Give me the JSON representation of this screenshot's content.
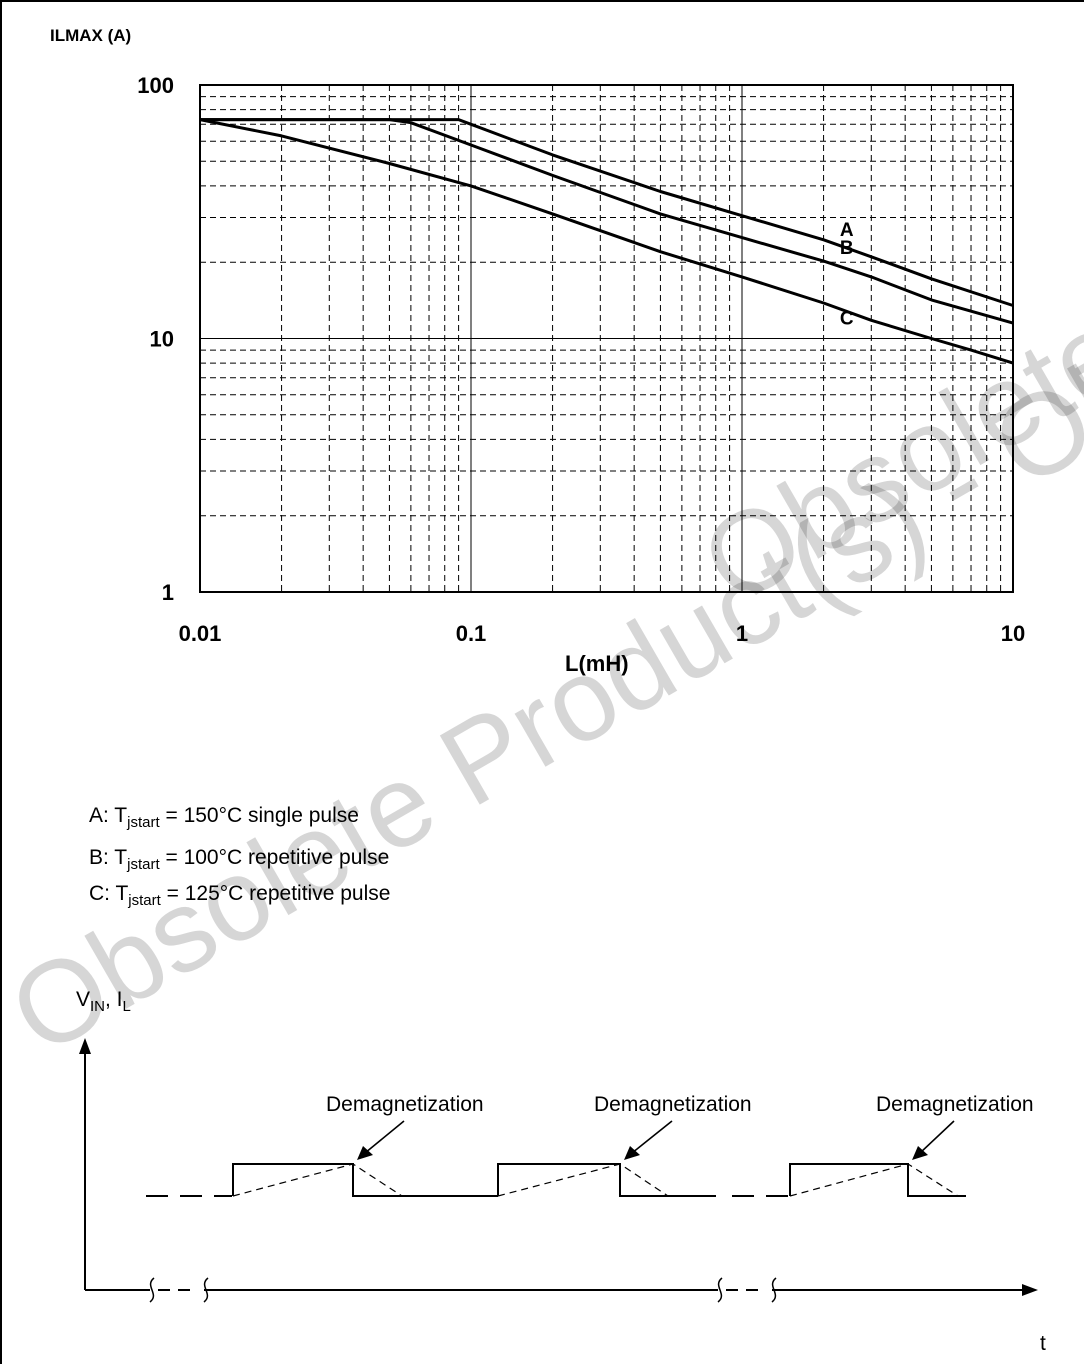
{
  "chart_data": {
    "type": "line",
    "x_scale": "log",
    "y_scale": "log",
    "xlim": [
      0.01,
      10
    ],
    "ylim": [
      1,
      100
    ],
    "xlabel": "L(mH)",
    "ylabel": "ILMAX (A)",
    "x_tick_labels": [
      "0.01",
      "0.1",
      "1",
      "10"
    ],
    "y_tick_labels": [
      "1",
      "10",
      "100"
    ],
    "grid": true,
    "series": [
      {
        "name": "A",
        "x": [
          0.01,
          0.09,
          0.1,
          0.2,
          0.5,
          1,
          2,
          3,
          5,
          10
        ],
        "values": [
          73,
          73,
          70,
          53,
          38,
          30.5,
          24.5,
          21,
          17.2,
          13.5
        ]
      },
      {
        "name": "B",
        "x": [
          0.01,
          0.05,
          0.06,
          0.1,
          0.2,
          0.5,
          1,
          2,
          3,
          5,
          10
        ],
        "values": [
          73,
          73,
          71,
          58,
          44,
          31,
          25,
          20.2,
          17.5,
          14.2,
          11.5
        ]
      },
      {
        "name": "C",
        "x": [
          0.01,
          0.02,
          0.05,
          0.1,
          0.2,
          0.5,
          1,
          2,
          3,
          5,
          7,
          10
        ],
        "values": [
          73,
          63,
          49,
          40,
          31,
          22,
          17.5,
          13.8,
          11.8,
          10.0,
          9.0,
          8.0
        ]
      }
    ],
    "series_colors": {
      "line": "#000000"
    }
  },
  "legend": {
    "a": {
      "prefix": "A: T",
      "sub": "jstart",
      "suffix": " = 150°C single pulse"
    },
    "b": {
      "prefix": "B: T",
      "sub": "jstart",
      "suffix": " = 100°C repetitive pulse"
    },
    "c": {
      "prefix": "C: T",
      "sub": "jstart",
      "suffix": " = 125°C repetitive pulse"
    }
  },
  "waveform": {
    "y_axis_label": {
      "v": "V",
      "v_sub": "IN",
      "sep": ", I",
      "i_sub": "L"
    },
    "x_axis_label": "t",
    "annotations": [
      "Demagnetization",
      "Demagnetization",
      "Demagnetization"
    ]
  },
  "watermark": {
    "line1": "Obsolete Product(s) - Obsolete Product(s)",
    "line2": "Obsolete Product(s)"
  }
}
